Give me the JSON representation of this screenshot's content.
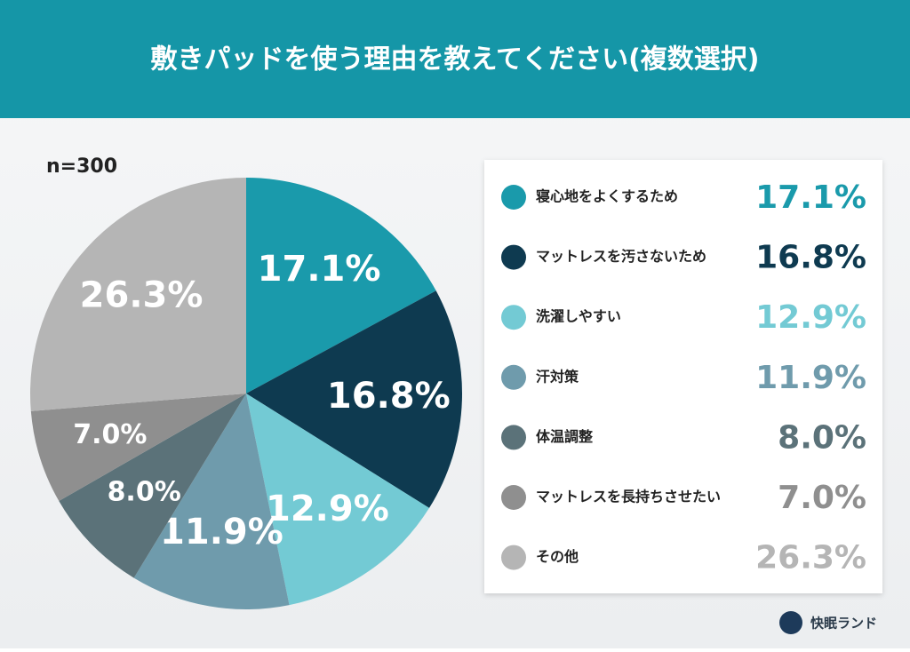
{
  "chart_data": {
    "type": "pie",
    "title": "敷きパッドを使う理由を教えてください(複数選択)",
    "subtitle": "n=300",
    "categories": [
      "寝心地をよくするため",
      "マットレスを汚さないため",
      "洗濯しやすい",
      "汗対策",
      "体温調整",
      "マットレスを長持ちさせたい",
      "その他"
    ],
    "values": [
      17.1,
      16.8,
      12.9,
      11.9,
      8.0,
      7.0,
      26.3
    ],
    "value_labels": [
      "17.1%",
      "16.8%",
      "12.9%",
      "11.9%",
      "8.0%",
      "7.0%",
      "26.3%"
    ],
    "colors": [
      "#1a9aab",
      "#0e3a50",
      "#73cad4",
      "#6f9bac",
      "#5b7279",
      "#8f8f8f",
      "#b5b5b5"
    ]
  },
  "brand": "快眠ランド"
}
